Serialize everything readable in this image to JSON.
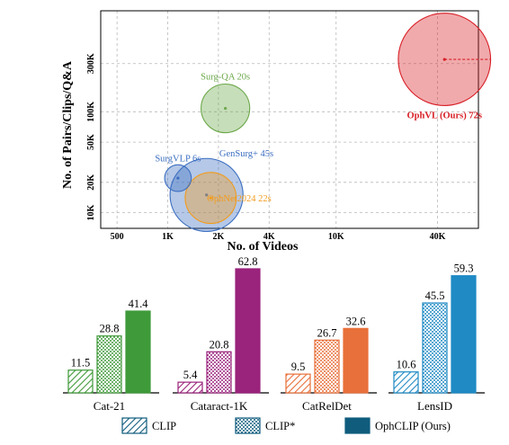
{
  "colors": {
    "grid": "#b8b8b8",
    "cat_21": "#3f9a3a",
    "cataract_1k": "#9a237c",
    "catreldet": "#e8703a",
    "lensid": "#1f8ac4",
    "ophvl": "#d81f26",
    "surgqa": "#6ca84a",
    "gensurg": "#3c6fc1",
    "ophnet": "#f29b1c",
    "legend_dark": "#0f5c7d"
  },
  "chart_data": [
    {
      "type": "scatter",
      "subtype": "bubble",
      "xlabel": "No. of Videos",
      "ylabel": "No. of Pairs/Clips/Q&A",
      "x_scale": "log",
      "y_scale": "log",
      "xlim": [
        400,
        70000
      ],
      "ylim": [
        7000,
        1000000
      ],
      "grid": true,
      "x_ticks": [
        {
          "value": 500,
          "label": "500"
        },
        {
          "value": 1000,
          "label": "1K"
        },
        {
          "value": 2000,
          "label": "2K"
        },
        {
          "value": 4000,
          "label": "4K"
        },
        {
          "value": 10000,
          "label": "10K"
        },
        {
          "value": 40000,
          "label": "40K"
        }
      ],
      "y_ticks": [
        {
          "value": 10000,
          "label": "10K"
        },
        {
          "value": 20000,
          "label": "20K"
        },
        {
          "value": 50000,
          "label": "50K"
        },
        {
          "value": 100000,
          "label": "100K"
        },
        {
          "value": 300000,
          "label": "300K"
        }
      ],
      "points": [
        {
          "name": "OphVL (Ours) 72s",
          "x": 44000,
          "y": 330000,
          "duration_s": 72,
          "color": "#d81f26",
          "label_pos": "bottom"
        },
        {
          "name": "Surg-QA 20s",
          "x": 2200,
          "y": 108000,
          "duration_s": 20,
          "color": "#6ca84a",
          "label_pos": "top"
        },
        {
          "name": "SurgVLP 6s",
          "x": 1150,
          "y": 22000,
          "duration_s": 6,
          "color": "#3c6fc1",
          "label_pos": "top-left"
        },
        {
          "name": "GenSurg+ 45s",
          "x": 1700,
          "y": 15000,
          "duration_s": 45,
          "color": "#3c6fc1",
          "label_pos": "top-right"
        },
        {
          "name": "OphNet2024 22s",
          "x": 1800,
          "y": 14000,
          "duration_s": 22,
          "color": "#f29b1c",
          "label_pos": "right"
        }
      ]
    },
    {
      "type": "bar",
      "categories": [
        "Cat-21",
        "Cataract-1K",
        "CatRelDet",
        "LensID"
      ],
      "series": [
        {
          "name": "CLIP",
          "values": [
            11.5,
            5.4,
            9.5,
            10.6
          ],
          "style": "diagonal-hatch"
        },
        {
          "name": "CLIP*",
          "values": [
            28.8,
            20.8,
            26.7,
            45.5
          ],
          "style": "dotted-hatch"
        },
        {
          "name": "OphCLIP (Ours)",
          "values": [
            41.4,
            62.8,
            32.6,
            59.3
          ],
          "style": "solid"
        }
      ],
      "ylim": [
        0,
        66
      ],
      "legend_position": "bottom"
    }
  ]
}
